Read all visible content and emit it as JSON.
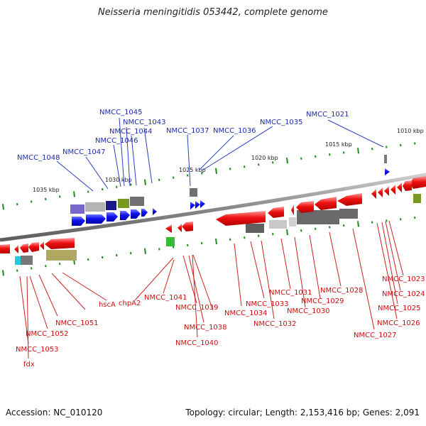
{
  "title": "Neisseria meningitidis 053442, complete genome",
  "footer": {
    "accession": "Accession: NC_010120",
    "stats": "Topology: circular; Length: 2,153,416 bp; Genes: 2,091"
  },
  "colors": {
    "forward": "#ee1111",
    "reverse": "#1111ee",
    "backbone": "#8a8a8a",
    "tick": "#228822",
    "label_top": "#1e2ea8",
    "label_bottom": "#cc1010"
  },
  "scale_labels": [
    "1035 kbp",
    "1030 kbp",
    "1025 kbp",
    "1020 kbp",
    "1015 kbp",
    "1010 kbp"
  ],
  "labels_top": [
    "NMCC_1045",
    "NMCC_1043",
    "NMCC_1044",
    "NMCC_1046",
    "NMCC_1047",
    "NMCC_1048",
    "NMCC_1037",
    "NMCC_1036",
    "NMCC_1035",
    "NMCC_1021"
  ],
  "labels_bottom": [
    "hscA",
    "chpA2",
    "NMCC_1041",
    "NMCC_1039",
    "NMCC_1038",
    "NMCC_1040",
    "NMCC_1051",
    "NMCC_1052",
    "NMCC_1053",
    "fdx",
    "NMCC_1034",
    "NMCC_1033",
    "NMCC_1032",
    "NMCC_1031",
    "NMCC_1030",
    "NMCC_1029",
    "NMCC_1028",
    "NMCC_1027",
    "NMCC_1026",
    "NMCC_1025",
    "NMCC_1024",
    "NMCC_1023"
  ]
}
